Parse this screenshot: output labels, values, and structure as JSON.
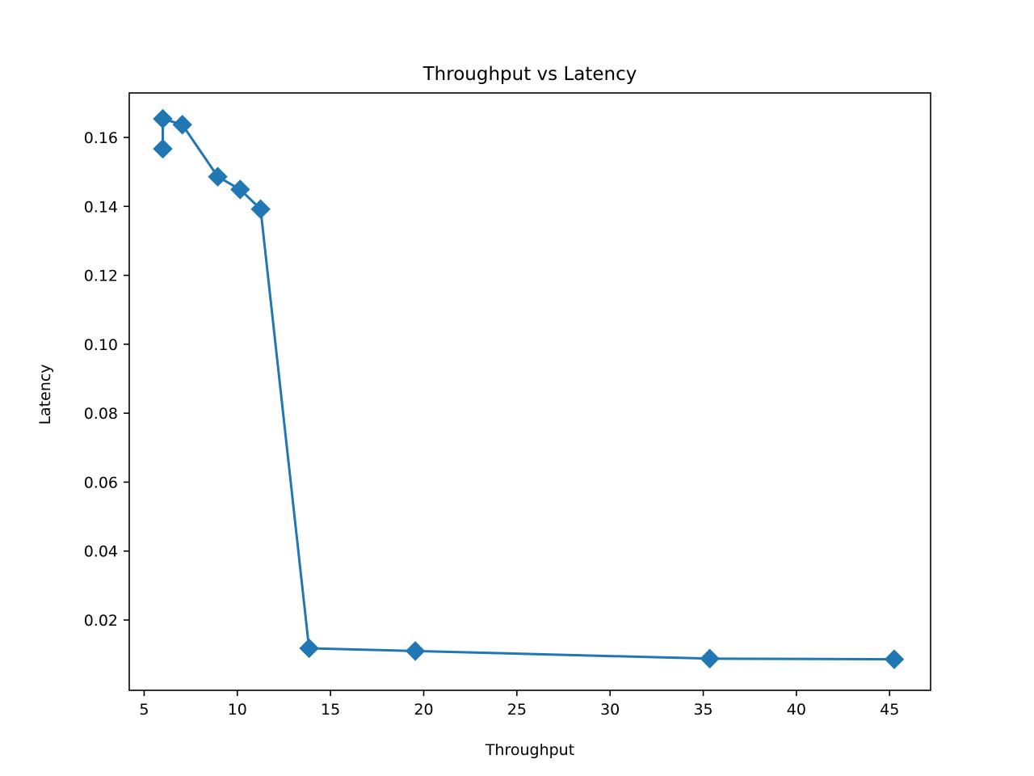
{
  "chart_data": {
    "type": "line",
    "title": "Throughput vs Latency",
    "xlabel": "Throughput",
    "ylabel": "Latency",
    "xlim": [
      4.2,
      47.2
    ],
    "ylim": [
      -0.0004,
      0.1729
    ],
    "xticks": [
      5,
      10,
      15,
      20,
      25,
      30,
      35,
      40,
      45
    ],
    "yticks": [
      0.02,
      0.04,
      0.06,
      0.08,
      0.1,
      0.12,
      0.14,
      0.16
    ],
    "xtick_labels": [
      "5",
      "10",
      "15",
      "20",
      "25",
      "30",
      "35",
      "40",
      "45"
    ],
    "ytick_labels": [
      "0.02",
      "0.04",
      "0.06",
      "0.08",
      "0.10",
      "0.12",
      "0.14",
      "0.16"
    ],
    "grid": false,
    "legend": "none",
    "marker": "diamond",
    "series": [
      {
        "color": "#1f77b4",
        "x": [
          6.0,
          6.0,
          7.05,
          8.95,
          10.15,
          11.25,
          13.85,
          19.55,
          35.35,
          45.25
        ],
        "y": [
          0.1567,
          0.1654,
          0.1637,
          0.1486,
          0.1449,
          0.1392,
          0.0118,
          0.011,
          0.0088,
          0.0086
        ]
      }
    ]
  }
}
